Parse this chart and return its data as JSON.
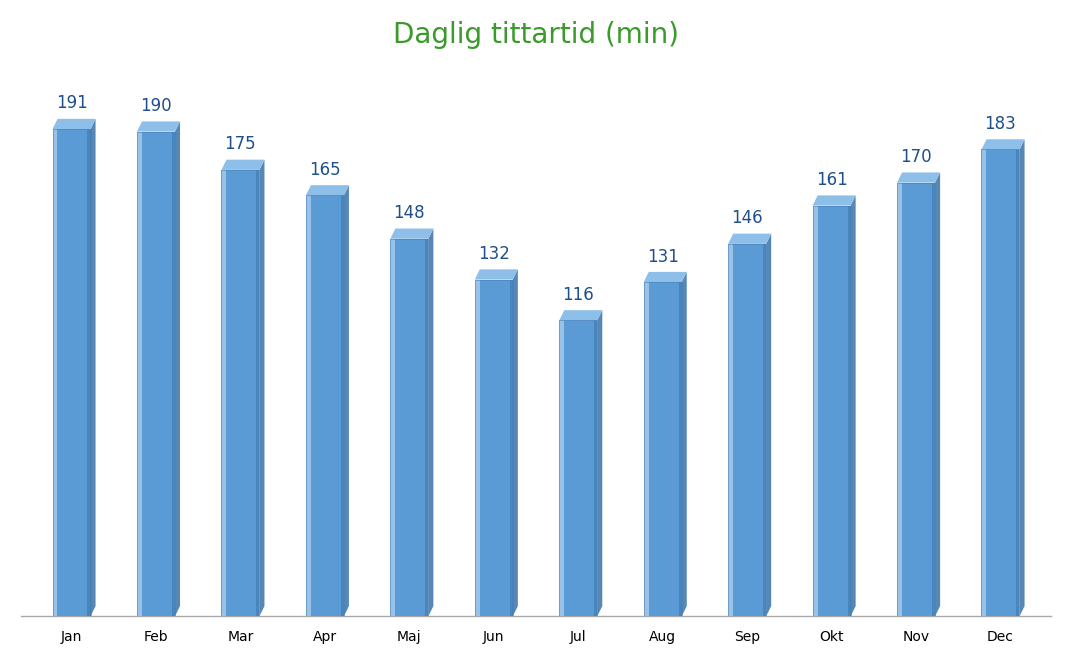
{
  "title": "Daglig tittartid (min)",
  "title_color": "#3a9a2a",
  "title_fontsize": 20,
  "categories": [
    "Jan",
    "Feb",
    "Mar",
    "Apr",
    "Maj",
    "Jun",
    "Jul",
    "Aug",
    "Sep",
    "Okt",
    "Nov",
    "Dec"
  ],
  "values": [
    191,
    190,
    175,
    165,
    148,
    132,
    116,
    131,
    146,
    161,
    170,
    183
  ],
  "bar_color_main": "#5b9bd5",
  "bar_color_left_highlight": "#afd0ef",
  "bar_color_top": "#8dbfe8",
  "bar_color_right_shadow": "#3a72a8",
  "bar_color_dark": "#2e5f94",
  "label_color": "#1f4e8c",
  "label_fontsize": 12,
  "tick_label_fontsize": 12,
  "background_color": "#ffffff",
  "ylim": [
    0,
    215
  ],
  "bar_width": 0.45
}
